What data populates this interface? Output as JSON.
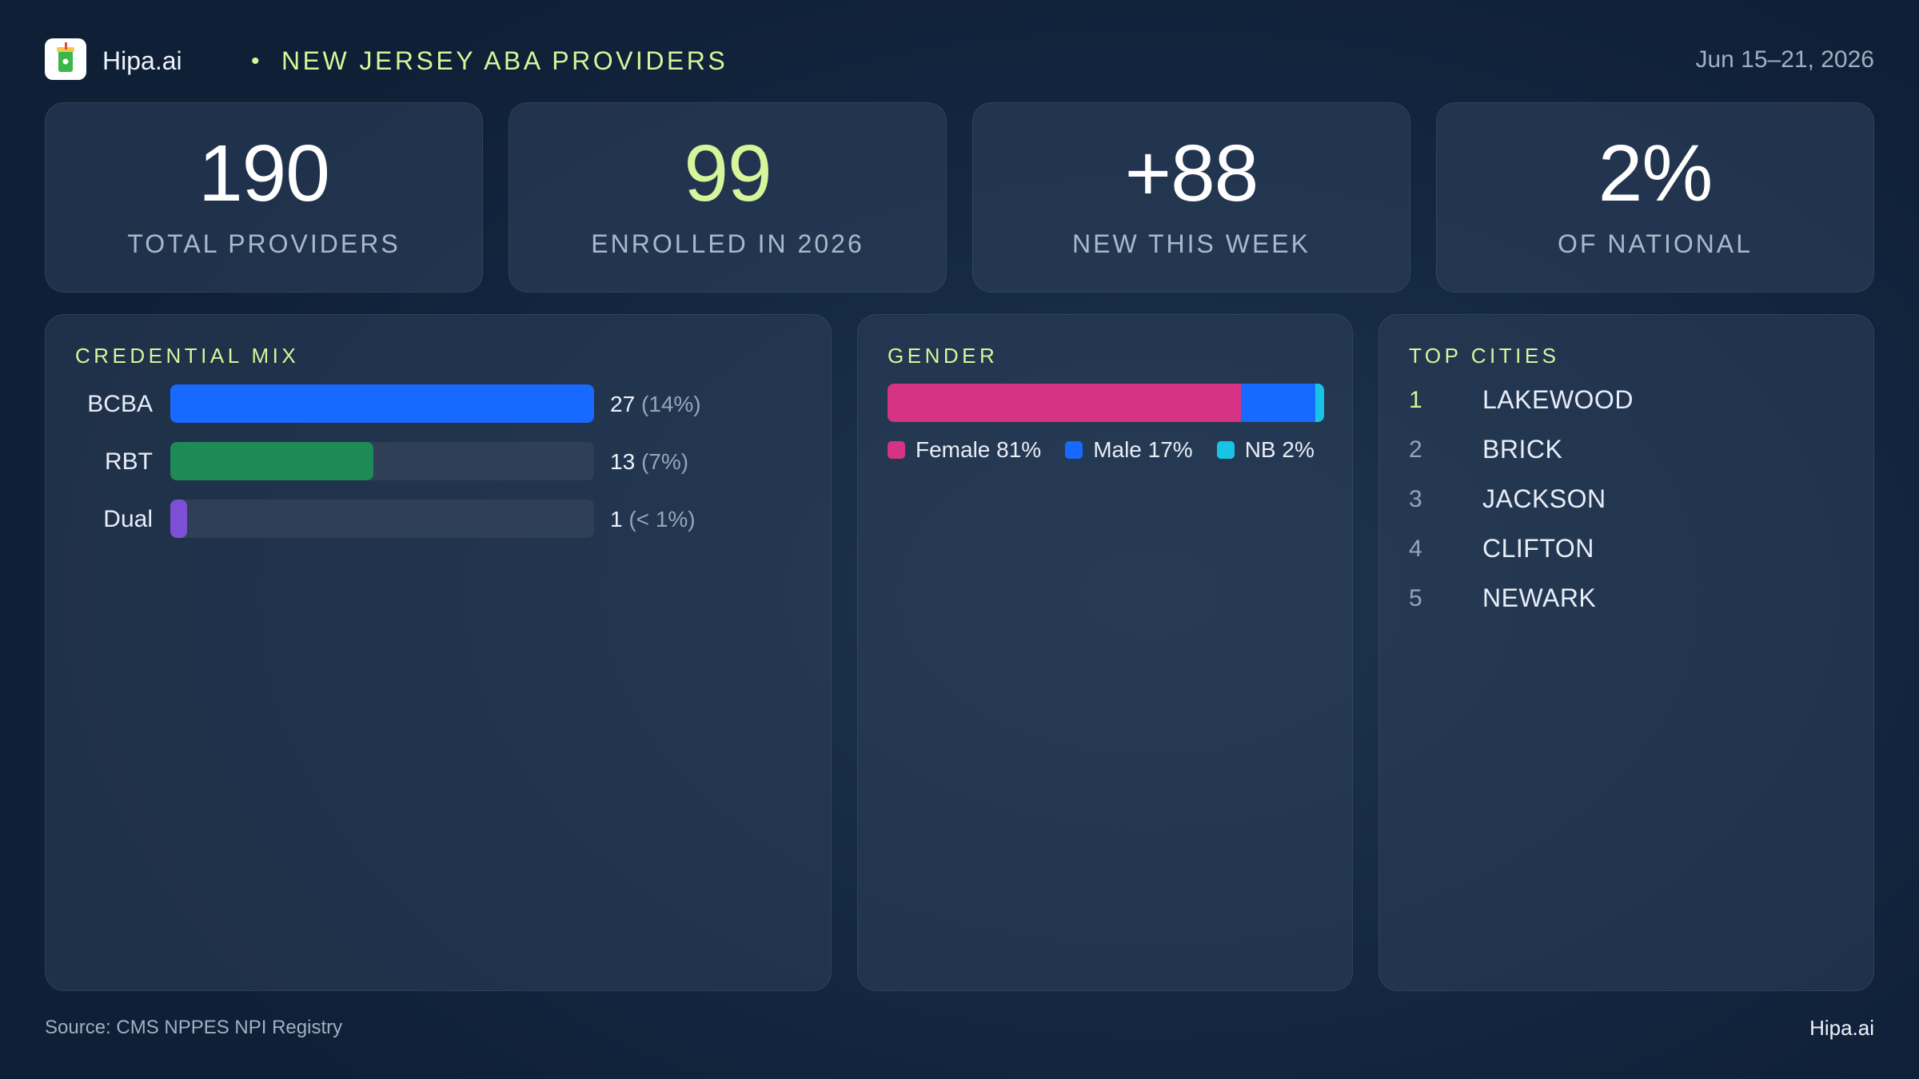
{
  "header": {
    "brand": "Hipa.ai",
    "separator": "•",
    "title": "NEW JERSEY ABA PROVIDERS",
    "date_range": "Jun 15–21, 2026",
    "logo_icon": "drink-cup-icon"
  },
  "kpis": [
    {
      "value": "190",
      "label": "TOTAL PROVIDERS"
    },
    {
      "value": "99",
      "label": "ENROLLED IN 2026"
    },
    {
      "value": "+88",
      "label": "NEW THIS WEEK"
    },
    {
      "value": "2%",
      "label": "OF NATIONAL"
    }
  ],
  "credential_mix": {
    "title": "CREDENTIAL MIX",
    "rows": [
      {
        "label": "BCBA",
        "count": "27",
        "pct": "(14%)",
        "fill": 1.0,
        "color": "#1769ff"
      },
      {
        "label": "RBT",
        "count": "13",
        "pct": "(7%)",
        "fill": 0.48,
        "color": "#1e8a55"
      },
      {
        "label": "Dual",
        "count": "1",
        "pct": "(< 1%)",
        "fill": 0.04,
        "color": "#7d4fd6"
      }
    ]
  },
  "gender": {
    "title": "GENDER",
    "segments": [
      {
        "label": "Female 81%",
        "share": 81,
        "color": "#d63384"
      },
      {
        "label": "Male 17%",
        "share": 17,
        "color": "#1769ff"
      },
      {
        "label": "NB 2%",
        "share": 2,
        "color": "#19c3e6"
      }
    ]
  },
  "top_cities": {
    "title": "TOP CITIES",
    "items": [
      {
        "rank": "1",
        "name": "LAKEWOOD"
      },
      {
        "rank": "2",
        "name": "BRICK"
      },
      {
        "rank": "3",
        "name": "JACKSON"
      },
      {
        "rank": "4",
        "name": "CLIFTON"
      },
      {
        "rank": "5",
        "name": "NEWARK"
      }
    ]
  },
  "footer": {
    "source": "Source: CMS NPPES NPI Registry",
    "brand": "Hipa.ai"
  }
}
